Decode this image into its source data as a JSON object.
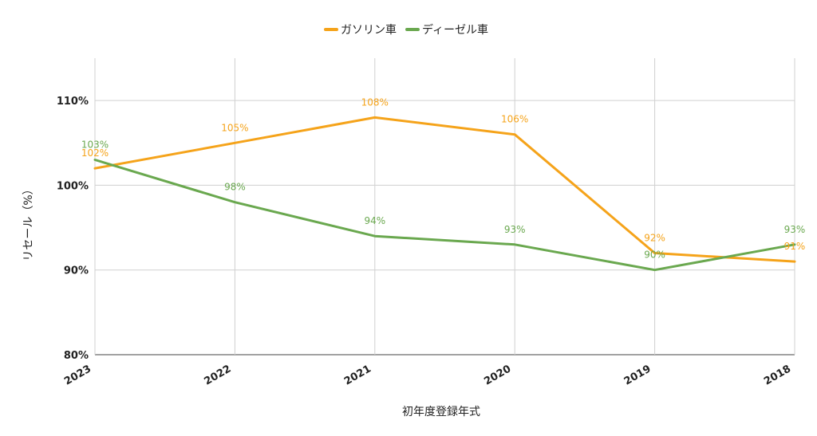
{
  "chart_data": {
    "type": "line",
    "categories": [
      "2023",
      "2022",
      "2021",
      "2020",
      "2019",
      "2018"
    ],
    "series": [
      {
        "name": "ガソリン車",
        "color": "#F5A31A",
        "values": [
          102,
          105,
          108,
          106,
          92,
          91
        ],
        "labels": [
          "102%",
          "105%",
          "108%",
          "106%",
          "92%",
          "91%"
        ]
      },
      {
        "name": "ディーゼル車",
        "color": "#6AA84F",
        "values": [
          103,
          98,
          94,
          93,
          90,
          93
        ],
        "labels": [
          "103%",
          "98%",
          "94%",
          "93%",
          "90%",
          "93%"
        ]
      }
    ],
    "xlabel": "初年度登録年式",
    "ylabel": "リセール（%）",
    "ylim": [
      80,
      115
    ],
    "yticks": [
      80,
      90,
      100,
      110
    ],
    "ytick_labels": [
      "80%",
      "90%",
      "100%",
      "110%"
    ],
    "grid": true,
    "legend_position": "top"
  }
}
